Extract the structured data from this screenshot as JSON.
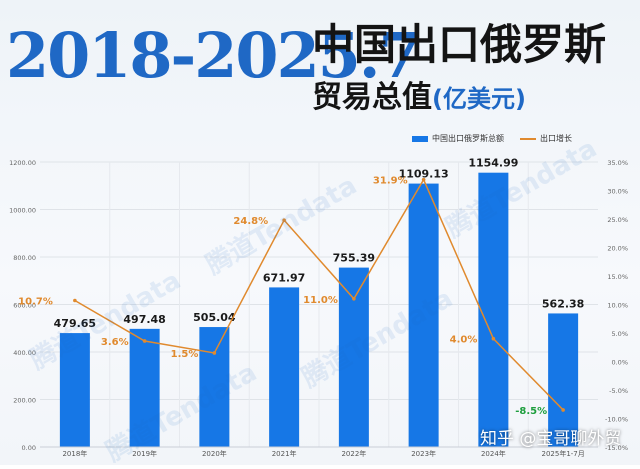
{
  "header": {
    "years": "2018-2025.7",
    "title": "中国出口俄罗斯",
    "subtitle": "贸易总值",
    "unit": "(亿美元)"
  },
  "watermarks": [
    "腾道Tendata",
    "腾道Tendata",
    "腾道Tendata",
    "腾道Tendata",
    "腾道Tendata"
  ],
  "footer_brand": "知乎 @宝哥聊外贸",
  "colors": {
    "bar": "#1677e6",
    "line": "#e08a2e",
    "accent": "#1f68c5",
    "negative": "#1e9e3e"
  },
  "chart_data": {
    "type": "bar",
    "categories": [
      "2018年",
      "2019年",
      "2020年",
      "2021年",
      "2022年",
      "2023年",
      "2024年",
      "2025年1-7月"
    ],
    "series": [
      {
        "name": "中国出口俄罗斯总额",
        "type": "bar",
        "axis": "left",
        "values": [
          479.65,
          497.48,
          505.04,
          671.97,
          755.39,
          1109.13,
          1154.99,
          562.38
        ],
        "labels": [
          "479.65",
          "497.48",
          "505.04",
          "671.97",
          "755.39",
          "1109.13",
          "1154.99",
          "562.38"
        ]
      },
      {
        "name": "出口增长",
        "type": "line",
        "axis": "right",
        "values": [
          10.7,
          3.6,
          1.5,
          24.8,
          11.0,
          31.9,
          4.0,
          -8.5
        ],
        "labels": [
          "10.7%",
          "3.6%",
          "1.5%",
          "24.8%",
          "11.0%",
          "31.9%",
          "4.0%",
          "-8.5%"
        ]
      }
    ],
    "y_left": {
      "ylim": [
        0,
        1200
      ],
      "ticks": [
        "0.00",
        "200.00",
        "400.00",
        "600.00",
        "800.00",
        "1000.00",
        "1200.00"
      ]
    },
    "y_right": {
      "ylim": [
        -15,
        35
      ],
      "ticks": [
        "-15.0%",
        "-10.0%",
        "-5.0%",
        "0.0%",
        "5.0%",
        "10.0%",
        "15.0%",
        "20.0%",
        "25.0%",
        "30.0%",
        "35.0%"
      ]
    },
    "grid": true,
    "legend": "top-right"
  }
}
